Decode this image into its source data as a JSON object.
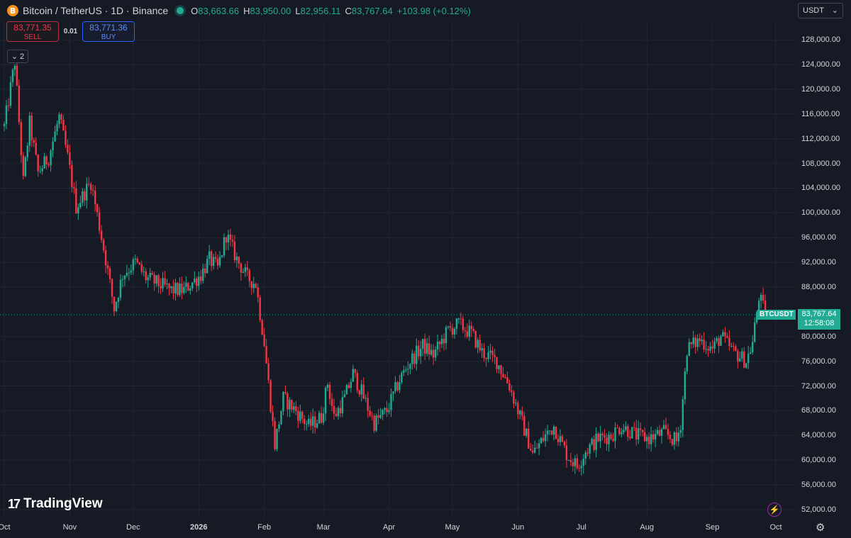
{
  "header": {
    "coin_icon": "B",
    "title": "Bitcoin / TetherUS · 1D · Binance",
    "o_label": "O",
    "o_value": "83,663.66",
    "h_label": "H",
    "h_value": "83,950.00",
    "l_label": "L",
    "l_value": "82,956.11",
    "c_label": "C",
    "c_value": "83,767.64",
    "change": "+103.98 (+0.12%)"
  },
  "trade": {
    "sell_price": "83,771.35",
    "sell_label": "SELL",
    "quantity": "0.01",
    "buy_price": "83,771.36",
    "buy_label": "BUY"
  },
  "indicator_toggle": {
    "chevron": "⌄",
    "count": "2"
  },
  "currency": {
    "selected": "USDT",
    "chevron": "⌄"
  },
  "price_scale": [
    "128,000.00",
    "124,000.00",
    "120,000.00",
    "116,000.00",
    "112,000.00",
    "108,000.00",
    "104,000.00",
    "100,000.00",
    "96,000.00",
    "92,000.00",
    "88,000.00",
    "80,000.00",
    "76,000.00",
    "72,000.00",
    "68,000.00",
    "64,000.00",
    "60,000.00",
    "56,000.00",
    "52,000.00"
  ],
  "time_scale": [
    "Oct",
    "Nov",
    "Dec",
    "2026",
    "Feb",
    "Mar",
    "Apr",
    "May",
    "Jun",
    "Jul",
    "Aug",
    "Sep",
    "Oct"
  ],
  "last_price": {
    "symbol": "BTCUSDT",
    "price": "83,767.64",
    "countdown": "12:58:08"
  },
  "branding": {
    "logo_mark": "17",
    "name": "TradingView"
  },
  "icons": {
    "flash": "flash-icon",
    "settings": "gear-icon"
  },
  "colors": {
    "up": "#22ab94",
    "down": "#f23645",
    "background": "#161a25",
    "grid": "#232632",
    "accent": "#2962ff"
  },
  "chart_data": {
    "type": "candlestick",
    "title": "Bitcoin / TetherUS · 1D · Binance",
    "ylim": [
      50500,
      131000
    ],
    "x_range": [
      "2025-10-01",
      "2026-10-01"
    ],
    "grid": true,
    "last_close": 83767.64,
    "anchors": [
      [
        "2025-10-01",
        114000
      ],
      [
        "2025-10-06",
        124500
      ],
      [
        "2025-10-10",
        105000
      ],
      [
        "2025-10-13",
        114500
      ],
      [
        "2025-10-17",
        106500
      ],
      [
        "2025-10-22",
        109000
      ],
      [
        "2025-10-27",
        115500
      ],
      [
        "2025-10-31",
        109000
      ],
      [
        "2025-11-04",
        101000
      ],
      [
        "2025-11-11",
        105000
      ],
      [
        "2025-11-18",
        92500
      ],
      [
        "2025-11-22",
        84500
      ],
      [
        "2025-11-26",
        90000
      ],
      [
        "2025-12-02",
        92000
      ],
      [
        "2025-12-07",
        89500
      ],
      [
        "2025-12-13",
        88500
      ],
      [
        "2025-12-19",
        87500
      ],
      [
        "2025-12-25",
        87500
      ],
      [
        "2026-01-02",
        90000
      ],
      [
        "2026-01-06",
        92500
      ],
      [
        "2026-01-10",
        91000
      ],
      [
        "2026-01-14",
        96500
      ],
      [
        "2026-01-19",
        92500
      ],
      [
        "2026-01-24",
        89500
      ],
      [
        "2026-01-28",
        88500
      ],
      [
        "2026-02-01",
        79000
      ],
      [
        "2026-02-06",
        62500
      ],
      [
        "2026-02-10",
        70000
      ],
      [
        "2026-02-16",
        68000
      ],
      [
        "2026-02-22",
        65500
      ],
      [
        "2026-02-28",
        67000
      ],
      [
        "2026-03-03",
        72500
      ],
      [
        "2026-03-06",
        67000
      ],
      [
        "2026-03-11",
        70000
      ],
      [
        "2026-03-15",
        74000
      ],
      [
        "2026-03-19",
        71000
      ],
      [
        "2026-03-25",
        66000
      ],
      [
        "2026-03-31",
        68000
      ],
      [
        "2026-04-06",
        73000
      ],
      [
        "2026-04-11",
        76000
      ],
      [
        "2026-04-17",
        78500
      ],
      [
        "2026-04-22",
        77000
      ],
      [
        "2026-04-29",
        81000
      ],
      [
        "2026-05-04",
        82000
      ],
      [
        "2026-05-10",
        80500
      ],
      [
        "2026-05-15",
        77500
      ],
      [
        "2026-05-22",
        76000
      ],
      [
        "2026-05-28",
        72000
      ],
      [
        "2026-06-04",
        65000
      ],
      [
        "2026-06-08",
        61000
      ],
      [
        "2026-06-14",
        64000
      ],
      [
        "2026-06-18",
        65500
      ],
      [
        "2026-06-24",
        61000
      ],
      [
        "2026-06-29",
        59000
      ],
      [
        "2026-07-03",
        61500
      ],
      [
        "2026-07-09",
        63500
      ],
      [
        "2026-07-15",
        64000
      ],
      [
        "2026-07-20",
        65500
      ],
      [
        "2026-07-27",
        64000
      ],
      [
        "2026-08-02",
        63500
      ],
      [
        "2026-08-09",
        64500
      ],
      [
        "2026-08-15",
        63000
      ],
      [
        "2026-08-17",
        66000
      ],
      [
        "2026-08-20",
        78000
      ],
      [
        "2026-08-26",
        79500
      ],
      [
        "2026-09-01",
        78000
      ],
      [
        "2026-09-05",
        80000
      ],
      [
        "2026-09-11",
        77500
      ],
      [
        "2026-09-17",
        76000
      ],
      [
        "2026-09-20",
        79000
      ],
      [
        "2026-09-23",
        86500
      ],
      [
        "2026-09-26",
        83767.64
      ]
    ]
  }
}
